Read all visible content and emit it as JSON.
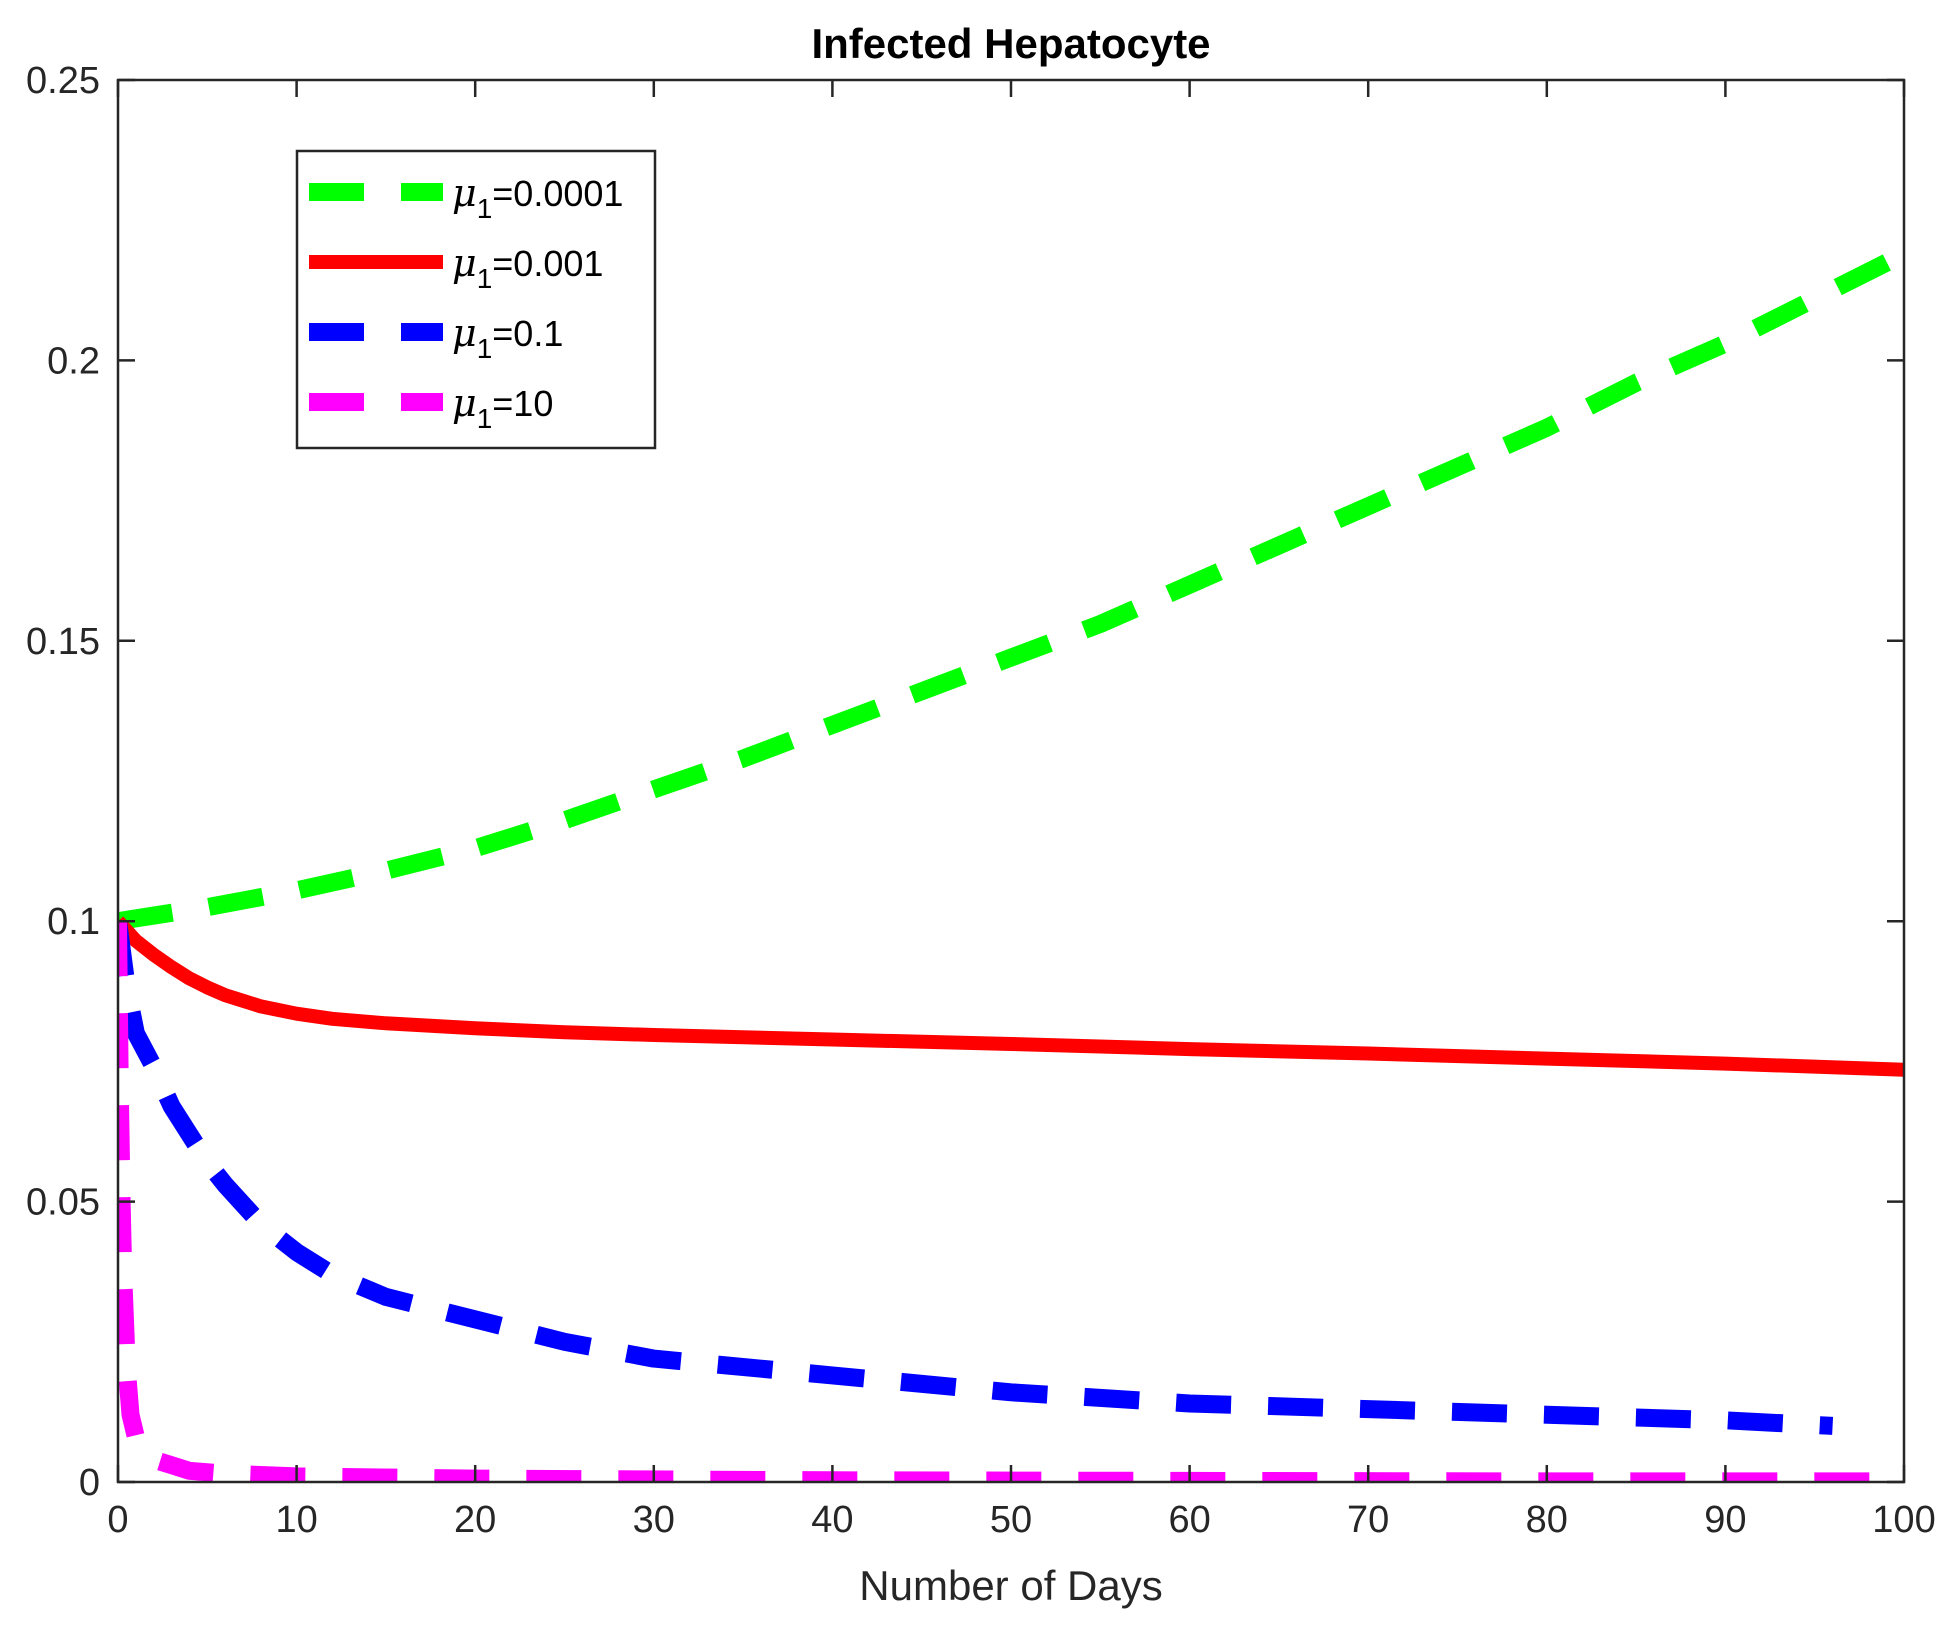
{
  "chart_data": {
    "type": "line",
    "title": "Infected Hepatocyte",
    "xlabel": "Number of Days",
    "ylabel": "",
    "xlim": [
      0,
      100
    ],
    "ylim": [
      0,
      0.25
    ],
    "xticks": [
      0,
      10,
      20,
      30,
      40,
      50,
      60,
      70,
      80,
      90,
      100
    ],
    "xtick_labels": [
      "0",
      "10",
      "20",
      "30",
      "40",
      "50",
      "60",
      "70",
      "80",
      "90",
      "100"
    ],
    "yticks": [
      0,
      0.05,
      0.1,
      0.15,
      0.2,
      0.25
    ],
    "ytick_labels": [
      "0",
      "0.05",
      "0.1",
      "0.15",
      "0.2",
      "0.25"
    ],
    "grid": false,
    "legend_position": "top-left",
    "series": [
      {
        "symbol": "μ",
        "subscript": "1",
        "value_text": "=0.0001",
        "color": "#00ff00",
        "style": "dashed",
        "x": [
          0,
          5,
          10,
          15,
          20,
          25,
          30,
          35,
          40,
          45,
          50,
          55,
          60,
          65,
          70,
          75,
          80,
          85,
          90,
          95,
          100
        ],
        "y": [
          0.1,
          0.1025,
          0.1055,
          0.109,
          0.113,
          0.118,
          0.1235,
          0.129,
          0.135,
          0.141,
          0.147,
          0.153,
          0.16,
          0.167,
          0.174,
          0.181,
          0.188,
          0.196,
          0.203,
          0.211,
          0.219
        ]
      },
      {
        "symbol": "μ",
        "subscript": "1",
        "value_text": "=0.001",
        "color": "#ff0000",
        "style": "solid",
        "x": [
          0,
          1,
          2,
          3,
          4,
          5,
          6,
          8,
          10,
          12,
          15,
          20,
          25,
          30,
          40,
          50,
          60,
          70,
          80,
          90,
          100
        ],
        "y": [
          0.1,
          0.0965,
          0.094,
          0.0918,
          0.0898,
          0.0882,
          0.0868,
          0.0848,
          0.0835,
          0.0826,
          0.0818,
          0.0809,
          0.0802,
          0.0797,
          0.0789,
          0.0781,
          0.0772,
          0.0764,
          0.0755,
          0.0746,
          0.0735
        ]
      },
      {
        "symbol": "μ",
        "subscript": "1",
        "value_text": "=0.1",
        "color": "#0000ff",
        "style": "dashed",
        "x": [
          0,
          0.5,
          1,
          2,
          3,
          4,
          5,
          6,
          8,
          10,
          12,
          15,
          20,
          25,
          30,
          40,
          50,
          60,
          70,
          80,
          90,
          96
        ],
        "y": [
          0.1,
          0.088,
          0.08,
          0.074,
          0.067,
          0.062,
          0.057,
          0.053,
          0.046,
          0.041,
          0.037,
          0.033,
          0.029,
          0.025,
          0.022,
          0.019,
          0.016,
          0.014,
          0.013,
          0.012,
          0.011,
          0.01
        ]
      },
      {
        "symbol": "μ",
        "subscript": "1",
        "value_text": "=10",
        "color": "#ff00ff",
        "style": "dashed",
        "x": [
          0,
          0.05,
          0.1,
          0.2,
          0.3,
          0.5,
          0.7,
          1,
          1.5,
          2,
          3,
          4,
          6,
          10,
          20,
          40,
          60,
          80,
          100
        ],
        "y": [
          0.1,
          0.085,
          0.07,
          0.05,
          0.036,
          0.02,
          0.012,
          0.008,
          0.006,
          0.004,
          0.003,
          0.002,
          0.0015,
          0.001,
          0.0006,
          0.0003,
          0.0002,
          0.0001,
          0.0001
        ]
      }
    ]
  }
}
